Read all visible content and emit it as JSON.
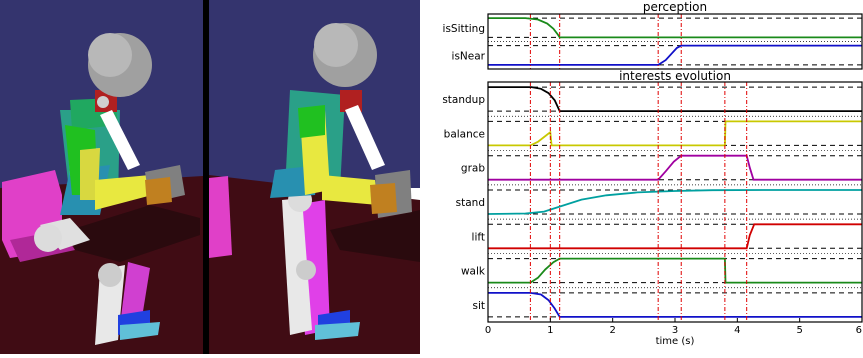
{
  "chart_data": [
    {
      "type": "line",
      "title": "perception",
      "xlim": [
        0,
        6
      ],
      "ylim": [
        0,
        1
      ],
      "xticks": [
        0,
        1,
        2,
        3,
        4,
        5,
        6
      ],
      "tick_labels": [
        "0",
        "1",
        "2",
        "3",
        "4",
        "5",
        "6"
      ],
      "reference_lines_x": [
        0.68,
        1.15,
        2.73,
        3.1
      ],
      "grid": false,
      "series": [
        {
          "name": "isSitting",
          "color": "#1a8a1a",
          "x": [
            0,
            0.6,
            0.8,
            0.95,
            1.05,
            1.12,
            1.15,
            6
          ],
          "y": [
            1,
            1,
            0.93,
            0.72,
            0.45,
            0.15,
            0,
            0
          ]
        },
        {
          "name": "isNear",
          "color": "#1010c8",
          "x": [
            0,
            2.73,
            2.85,
            2.95,
            3.03,
            3.1,
            6
          ],
          "y": [
            0,
            0,
            0.25,
            0.6,
            0.88,
            1,
            1
          ]
        }
      ]
    },
    {
      "type": "line",
      "title": "interests evolution",
      "xlabel": "time (s)",
      "xlim": [
        0,
        6
      ],
      "ylim": [
        0,
        1
      ],
      "xticks": [
        0,
        1,
        2,
        3,
        4,
        5,
        6
      ],
      "tick_labels": [
        "0",
        "1",
        "2",
        "3",
        "4",
        "5",
        "6"
      ],
      "reference_lines_x": [
        0.68,
        1.0,
        1.15,
        2.73,
        3.1,
        3.8,
        4.15
      ],
      "grid": false,
      "series": [
        {
          "name": "standup",
          "color": "#000000",
          "x": [
            0,
            0.7,
            0.85,
            0.97,
            1.07,
            1.15,
            6
          ],
          "y": [
            1,
            1,
            0.93,
            0.75,
            0.45,
            0,
            0
          ]
        },
        {
          "name": "balance",
          "color": "#c8c800",
          "x": [
            0,
            0.68,
            0.8,
            0.9,
            1.0,
            1.02,
            3.8,
            3.81,
            6
          ],
          "y": [
            0,
            0,
            0.15,
            0.35,
            0.55,
            0,
            0,
            1,
            1
          ]
        },
        {
          "name": "grab",
          "color": "#a000a0",
          "x": [
            0,
            2.73,
            2.85,
            2.98,
            3.1,
            4.15,
            4.2,
            4.26,
            6
          ],
          "y": [
            0,
            0,
            0.35,
            0.75,
            1,
            1,
            0.5,
            0,
            0
          ]
        },
        {
          "name": "stand",
          "color": "#00a0a0",
          "x": [
            0,
            0.6,
            0.9,
            1.2,
            1.5,
            1.9,
            2.4,
            3.0,
            3.6,
            4.5,
            6
          ],
          "y": [
            0,
            0.02,
            0.1,
            0.35,
            0.6,
            0.78,
            0.9,
            0.96,
            0.99,
            1,
            1
          ]
        },
        {
          "name": "lift",
          "color": "#d00000",
          "x": [
            0,
            4.15,
            4.2,
            4.27,
            6
          ],
          "y": [
            0,
            0,
            0.55,
            1,
            1
          ]
        },
        {
          "name": "walk",
          "color": "#1a8a1a",
          "x": [
            0,
            0.68,
            0.8,
            0.92,
            1.05,
            1.15,
            3.8,
            3.81,
            6
          ],
          "y": [
            0,
            0,
            0.2,
            0.55,
            0.85,
            1,
            1,
            0,
            0
          ]
        },
        {
          "name": "sit",
          "color": "#1010c8",
          "x": [
            0,
            0.68,
            0.85,
            0.97,
            1.07,
            1.15,
            6
          ],
          "y": [
            1,
            1,
            0.93,
            0.7,
            0.35,
            0,
            0
          ]
        }
      ]
    }
  ]
}
